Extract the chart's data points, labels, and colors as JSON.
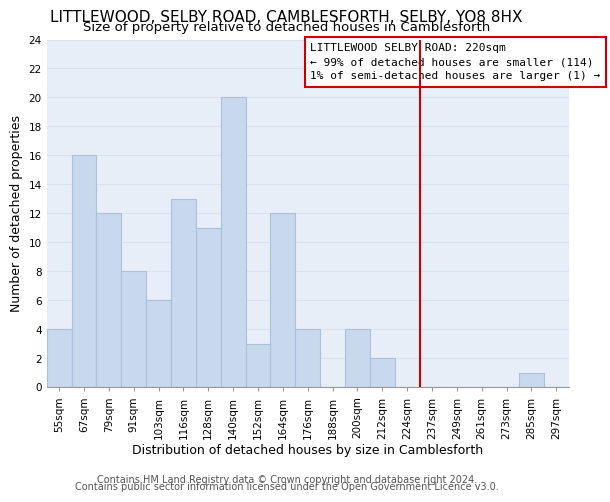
{
  "title": "LITTLEWOOD, SELBY ROAD, CAMBLESFORTH, SELBY, YO8 8HX",
  "subtitle": "Size of property relative to detached houses in Camblesforth",
  "xlabel": "Distribution of detached houses by size in Camblesforth",
  "ylabel": "Number of detached properties",
  "bin_labels": [
    "55sqm",
    "67sqm",
    "79sqm",
    "91sqm",
    "103sqm",
    "116sqm",
    "128sqm",
    "140sqm",
    "152sqm",
    "164sqm",
    "176sqm",
    "188sqm",
    "200sqm",
    "212sqm",
    "224sqm",
    "237sqm",
    "249sqm",
    "261sqm",
    "273sqm",
    "285sqm",
    "297sqm"
  ],
  "bar_heights": [
    4,
    16,
    12,
    8,
    6,
    13,
    11,
    20,
    3,
    12,
    4,
    0,
    4,
    2,
    0,
    0,
    0,
    0,
    0,
    1,
    0
  ],
  "bar_color": "#c8d9ee",
  "bar_edge_color": "#aac0db",
  "grid_color": "#d8e4f0",
  "vline_x": 14.5,
  "vline_color": "#cc0000",
  "annotation_text_line1": "LITTLEWOOD SELBY ROAD: 220sqm",
  "annotation_text_line2": "← 99% of detached houses are smaller (114)",
  "annotation_text_line3": "1% of semi-detached houses are larger (1) →",
  "annotation_box_color": "#cc0000",
  "ylim": [
    0,
    24
  ],
  "yticks": [
    0,
    2,
    4,
    6,
    8,
    10,
    12,
    14,
    16,
    18,
    20,
    22,
    24
  ],
  "footer_line1": "Contains HM Land Registry data © Crown copyright and database right 2024.",
  "footer_line2": "Contains public sector information licensed under the Open Government Licence v3.0.",
  "background_color": "#ffffff",
  "plot_bg_color": "#e8eef8",
  "title_fontsize": 11,
  "subtitle_fontsize": 9.5,
  "axis_label_fontsize": 9,
  "tick_fontsize": 7.5,
  "footer_fontsize": 7,
  "annotation_fontsize": 8
}
